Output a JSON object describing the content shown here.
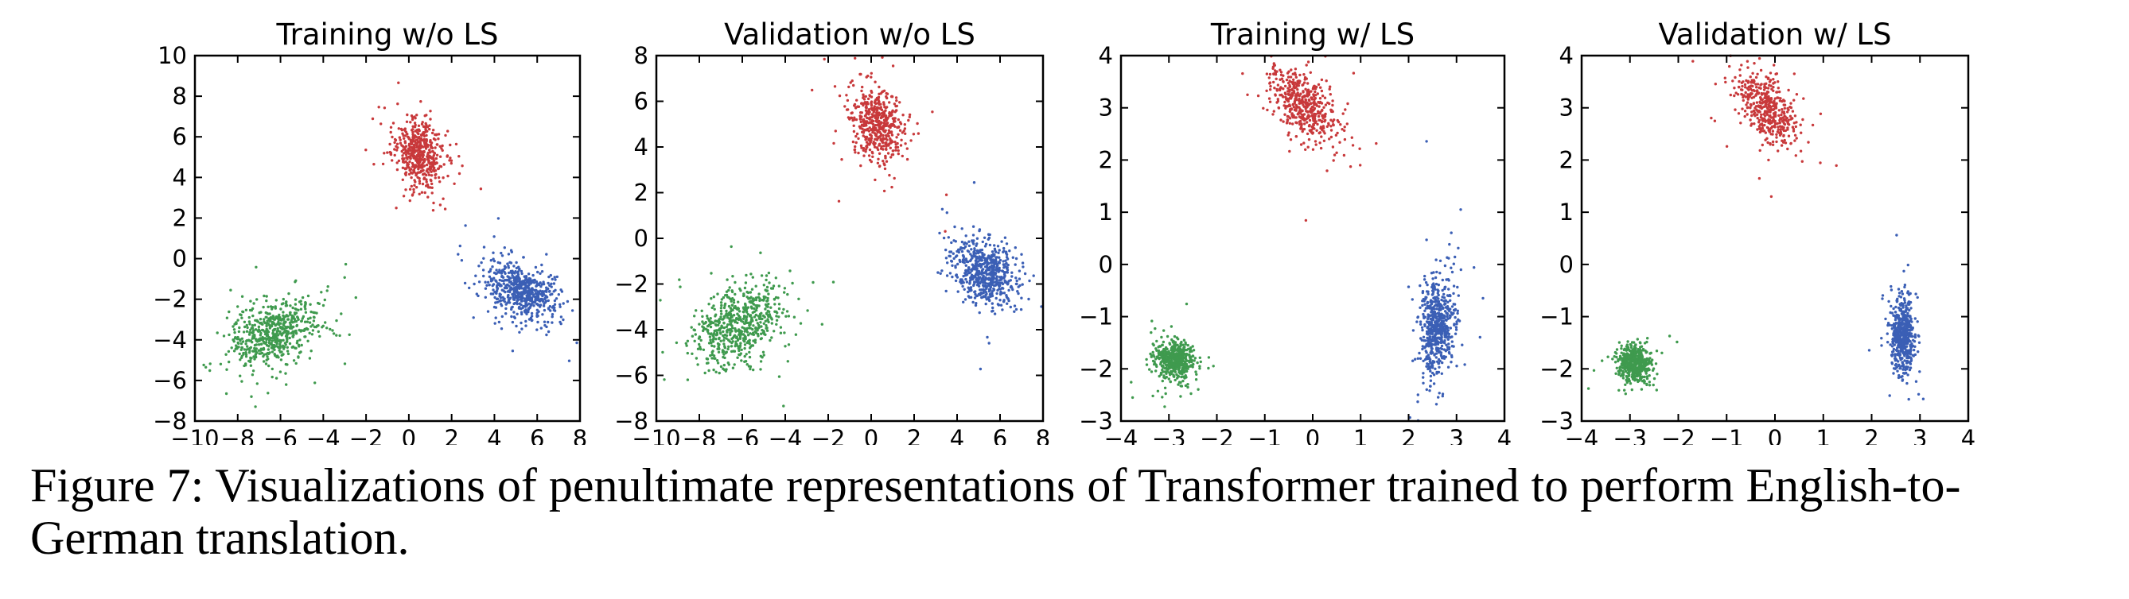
{
  "caption": "Figure 7: Visualizations of penultimate representations of Transformer trained to perform English-to-German translation.",
  "colors": {
    "red": "#c8393b",
    "blue": "#3b5fb5",
    "green": "#3f9a4e"
  },
  "chart_data": [
    {
      "type": "scatter",
      "title": "Training w/o LS",
      "xlabel": "",
      "ylabel": "",
      "xlim": [
        -10,
        8
      ],
      "ylim": [
        -8,
        10
      ],
      "xticks": [
        -10,
        -8,
        -6,
        -4,
        -2,
        0,
        2,
        4,
        6,
        8
      ],
      "yticks": [
        -8,
        -6,
        -4,
        -2,
        0,
        2,
        4,
        6,
        8,
        10
      ],
      "grid": false,
      "series": [
        {
          "color": "red",
          "center": [
            0.4,
            5.2
          ],
          "spread": [
            0.6,
            0.85
          ],
          "corr": -0.25,
          "n": 500
        },
        {
          "color": "blue",
          "center": [
            5.3,
            -1.6
          ],
          "spread": [
            0.85,
            0.7
          ],
          "corr": -0.4,
          "n": 600
        },
        {
          "color": "green",
          "center": [
            -6.3,
            -3.7
          ],
          "spread": [
            1.0,
            0.85
          ],
          "corr": 0.35,
          "n": 600
        }
      ]
    },
    {
      "type": "scatter",
      "title": "Validation w/o LS",
      "xlabel": "",
      "ylabel": "",
      "xlim": [
        -10,
        8
      ],
      "ylim": [
        -8,
        8
      ],
      "xticks": [
        -10,
        -8,
        -6,
        -4,
        -2,
        0,
        2,
        4,
        6,
        8
      ],
      "yticks": [
        -8,
        -6,
        -4,
        -2,
        0,
        2,
        4,
        6,
        8
      ],
      "grid": false,
      "series": [
        {
          "color": "red",
          "center": [
            0.3,
            5.0
          ],
          "spread": [
            0.6,
            0.85
          ],
          "corr": -0.2,
          "n": 500
        },
        {
          "color": "blue",
          "center": [
            5.3,
            -1.5
          ],
          "spread": [
            0.75,
            0.7
          ],
          "corr": -0.3,
          "n": 600
        },
        {
          "color": "green",
          "center": [
            -6.2,
            -3.8
          ],
          "spread": [
            1.0,
            0.9
          ],
          "corr": 0.3,
          "n": 600
        }
      ]
    },
    {
      "type": "scatter",
      "title": "Training w/ LS",
      "xlabel": "",
      "ylabel": "",
      "xlim": [
        -4,
        4
      ],
      "ylim": [
        -3,
        4
      ],
      "xticks": [
        -4,
        -3,
        -2,
        -1,
        0,
        1,
        2,
        3,
        4
      ],
      "yticks": [
        -3,
        -2,
        -1,
        0,
        1,
        2,
        3,
        4
      ],
      "grid": false,
      "series": [
        {
          "color": "red",
          "center": [
            -0.2,
            3.05
          ],
          "spread": [
            0.35,
            0.35
          ],
          "corr": -0.55,
          "n": 500
        },
        {
          "color": "blue",
          "center": [
            2.6,
            -1.2
          ],
          "spread": [
            0.18,
            0.45
          ],
          "corr": 0.2,
          "n": 600
        },
        {
          "color": "green",
          "center": [
            -2.9,
            -1.85
          ],
          "spread": [
            0.2,
            0.18
          ],
          "corr": 0.0,
          "n": 500
        }
      ]
    },
    {
      "type": "scatter",
      "title": "Validation w/ LS",
      "xlabel": "",
      "ylabel": "",
      "xlim": [
        -4,
        4
      ],
      "ylim": [
        -3,
        4
      ],
      "xticks": [
        -4,
        -3,
        -2,
        -1,
        0,
        1,
        2,
        3,
        4
      ],
      "yticks": [
        -3,
        -2,
        -1,
        0,
        1,
        2,
        3,
        4
      ],
      "grid": false,
      "series": [
        {
          "color": "red",
          "center": [
            -0.15,
            3.0
          ],
          "spread": [
            0.3,
            0.35
          ],
          "corr": -0.5,
          "n": 450
        },
        {
          "color": "blue",
          "center": [
            2.65,
            -1.35
          ],
          "spread": [
            0.12,
            0.35
          ],
          "corr": 0.0,
          "n": 550
        },
        {
          "color": "green",
          "center": [
            -2.9,
            -1.9
          ],
          "spread": [
            0.17,
            0.17
          ],
          "corr": 0.0,
          "n": 500
        }
      ]
    }
  ]
}
